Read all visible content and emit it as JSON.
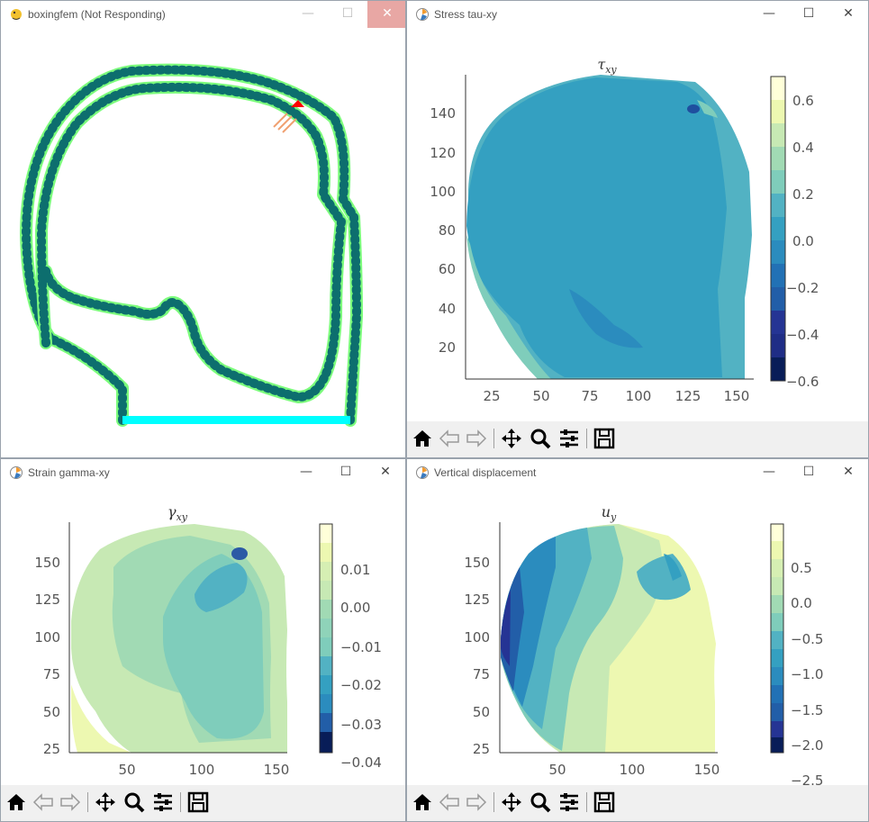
{
  "windows": {
    "main": {
      "title": "boxingfem (Not Responding)"
    },
    "stress": {
      "title": "Stress tau-xy",
      "chart": {
        "type": "heatmap",
        "title": "τ",
        "title_sub": "xy",
        "xticks": [
          "25",
          "50",
          "75",
          "100",
          "125",
          "150"
        ],
        "yticks": [
          "20",
          "40",
          "60",
          "80",
          "100",
          "120",
          "140"
        ],
        "cbar": [
          "0.6",
          "0.4",
          "0.2",
          "0.0",
          "−0.2",
          "−0.4",
          "−0.6"
        ]
      }
    },
    "strain": {
      "title": "Strain gamma-xy",
      "chart": {
        "type": "heatmap",
        "title": "γ",
        "title_sub": "xy",
        "xticks": [
          "50",
          "100",
          "150"
        ],
        "yticks": [
          "25",
          "50",
          "75",
          "100",
          "125",
          "150"
        ],
        "cbar": [
          "0.01",
          "0.00",
          "−0.01",
          "−0.02",
          "−0.03",
          "−0.04"
        ]
      }
    },
    "disp": {
      "title": "Vertical displacement",
      "chart": {
        "type": "heatmap",
        "title": "u",
        "title_sub": "y",
        "xticks": [
          "50",
          "100",
          "150"
        ],
        "yticks": [
          "25",
          "50",
          "75",
          "100",
          "125",
          "150"
        ],
        "cbar": [
          "0.5",
          "0.0",
          "−0.5",
          "−1.0",
          "−1.5",
          "−2.0",
          "−2.5"
        ]
      }
    }
  },
  "chart_data": [
    {
      "type": "heatmap",
      "title": "τxy",
      "xlim": [
        10,
        157
      ],
      "ylim": [
        3,
        158
      ],
      "xticks": [
        25,
        50,
        75,
        100,
        125,
        150
      ],
      "yticks": [
        20,
        40,
        60,
        80,
        100,
        120,
        140
      ],
      "colorbar": {
        "min": -0.6,
        "max": 0.7,
        "ticks": [
          -0.6,
          -0.4,
          -0.2,
          0.0,
          0.2,
          0.4,
          0.6
        ],
        "colormap": "YlGnBu"
      }
    },
    {
      "type": "heatmap",
      "title": "γxy",
      "xlim": [
        10,
        157
      ],
      "ylim": [
        3,
        158
      ],
      "xticks": [
        50,
        100,
        150
      ],
      "yticks": [
        25,
        50,
        75,
        100,
        125,
        150
      ],
      "colorbar": {
        "min": -0.045,
        "max": 0.015,
        "ticks": [
          -0.04,
          -0.03,
          -0.02,
          -0.01,
          0.0,
          0.01
        ],
        "colormap": "YlGnBu"
      }
    },
    {
      "type": "heatmap",
      "title": "uy",
      "xlim": [
        10,
        157
      ],
      "ylim": [
        3,
        158
      ],
      "xticks": [
        50,
        100,
        150
      ],
      "yticks": [
        25,
        50,
        75,
        100,
        125,
        150
      ],
      "colorbar": {
        "min": -2.5,
        "max": 0.75,
        "ticks": [
          -2.5,
          -2.0,
          -1.5,
          -1.0,
          -0.5,
          0.0,
          0.5
        ],
        "colormap": "YlGnBu"
      }
    }
  ],
  "toolbar": [
    "home-icon",
    "back-icon",
    "forward-icon",
    "pan-icon",
    "zoom-icon",
    "configure-icon",
    "save-icon"
  ],
  "colors": {
    "outline": "#0d6e6e",
    "glow": "#7cfc7c",
    "base": "#00ffff",
    "impact": "#ff0000"
  }
}
